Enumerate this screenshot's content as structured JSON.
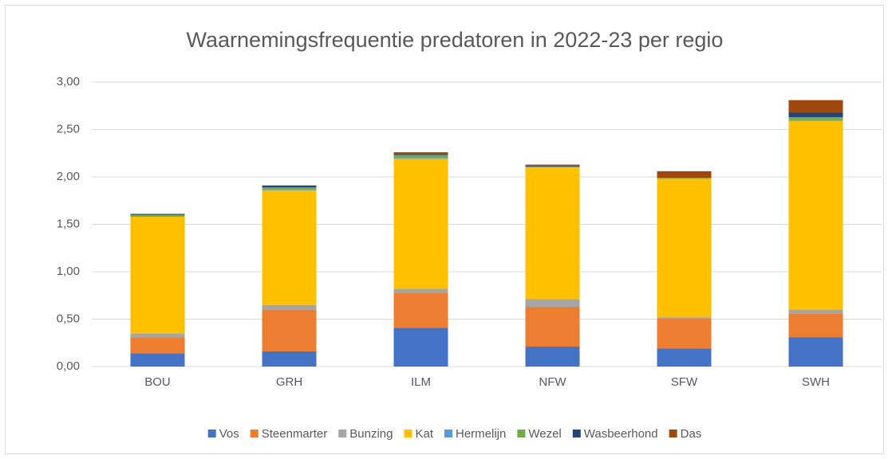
{
  "chart_data": {
    "type": "stacked-bar",
    "title": "Waarnemingsfrequentie predatoren in 2022-23 per regio",
    "categories": [
      "BOU",
      "GRH",
      "ILM",
      "NFW",
      "SFW",
      "SWH"
    ],
    "series": [
      {
        "name": "Vos",
        "color": "#4472c4",
        "values": [
          0.14,
          0.16,
          0.41,
          0.21,
          0.19,
          0.31
        ]
      },
      {
        "name": "Steenmarter",
        "color": "#ed7d31",
        "values": [
          0.17,
          0.44,
          0.37,
          0.42,
          0.32,
          0.25
        ]
      },
      {
        "name": "Bunzing",
        "color": "#a5a5a5",
        "values": [
          0.04,
          0.05,
          0.04,
          0.08,
          0.01,
          0.04
        ]
      },
      {
        "name": "Kat",
        "color": "#ffc000",
        "values": [
          1.23,
          1.21,
          1.37,
          1.39,
          1.46,
          1.99
        ]
      },
      {
        "name": "Hermelijn",
        "color": "#5b9bd5",
        "values": [
          0.0,
          0.01,
          0.01,
          0.0,
          0.0,
          0.01
        ]
      },
      {
        "name": "Wezel",
        "color": "#70ad47",
        "values": [
          0.02,
          0.02,
          0.03,
          0.01,
          0.01,
          0.03
        ]
      },
      {
        "name": "Wasbeerhond",
        "color": "#264478",
        "values": [
          0.01,
          0.02,
          0.01,
          0.01,
          0.0,
          0.05
        ]
      },
      {
        "name": "Das",
        "color": "#9e480e",
        "values": [
          0.0,
          0.0,
          0.02,
          0.01,
          0.07,
          0.13
        ]
      }
    ],
    "ylim": [
      0,
      3
    ],
    "yticks": [
      {
        "value": 0,
        "label": "0,00"
      },
      {
        "value": 0.5,
        "label": "0,50"
      },
      {
        "value": 1,
        "label": "1,00"
      },
      {
        "value": 1.5,
        "label": "1,50"
      },
      {
        "value": 2,
        "label": "2,00"
      },
      {
        "value": 2.5,
        "label": "2,50"
      },
      {
        "value": 3,
        "label": "3,00"
      }
    ],
    "grid": true,
    "legend": "bottom"
  }
}
